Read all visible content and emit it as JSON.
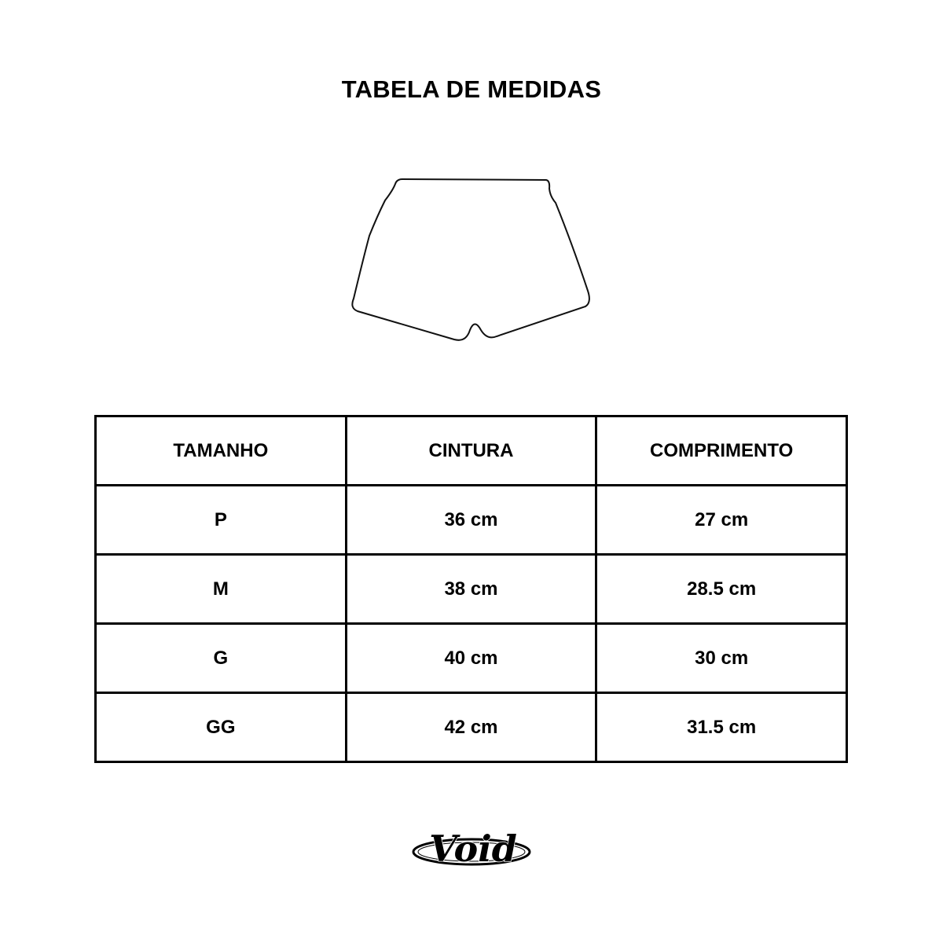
{
  "title": "TABELA DE MEDIDAS",
  "table": {
    "headers": [
      "TAMANHO",
      "CINTURA",
      "COMPRIMENTO"
    ],
    "rows": [
      [
        "P",
        "36 cm",
        "27 cm"
      ],
      [
        "M",
        "38 cm",
        "28.5 cm"
      ],
      [
        "G",
        "40 cm",
        "30 cm"
      ],
      [
        "GG",
        "42 cm",
        "31.5 cm"
      ]
    ]
  },
  "logo": {
    "text": "Void"
  }
}
